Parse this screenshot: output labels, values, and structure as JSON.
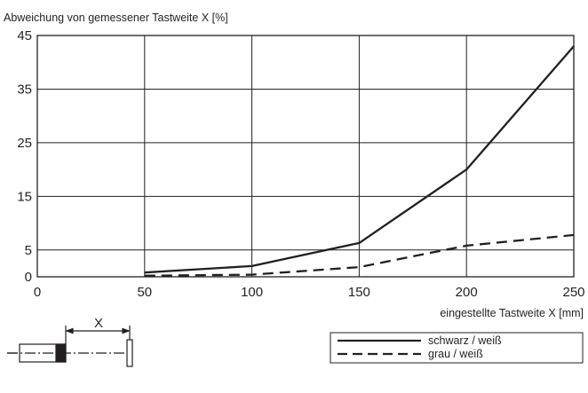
{
  "chart_data": {
    "type": "line",
    "ylabel": "Abweichung von gemessener Tastweite X [%]",
    "xlabel": "eingestellte Tastweite X [mm]",
    "xlim": [
      0,
      250
    ],
    "ylim": [
      0,
      45
    ],
    "x_ticks": [
      0,
      50,
      100,
      150,
      200,
      250
    ],
    "y_ticks": [
      0,
      5,
      15,
      25,
      35,
      45
    ],
    "grid": true,
    "legend_position": "bottom-right",
    "series": [
      {
        "name": "schwarz / weiß",
        "style": "solid",
        "x": [
          50,
          100,
          150,
          200,
          250
        ],
        "y": [
          0.8,
          2.0,
          6.3,
          20.0,
          43.0
        ]
      },
      {
        "name": "grau / weiß",
        "style": "dashed",
        "x": [
          50,
          100,
          150,
          200,
          250
        ],
        "y": [
          0.2,
          0.4,
          1.8,
          5.8,
          7.8
        ]
      }
    ]
  },
  "diagram": {
    "distance_label": "X"
  },
  "colors": {
    "line": "#231f20",
    "grid": "#231f20",
    "background": "#ffffff"
  }
}
